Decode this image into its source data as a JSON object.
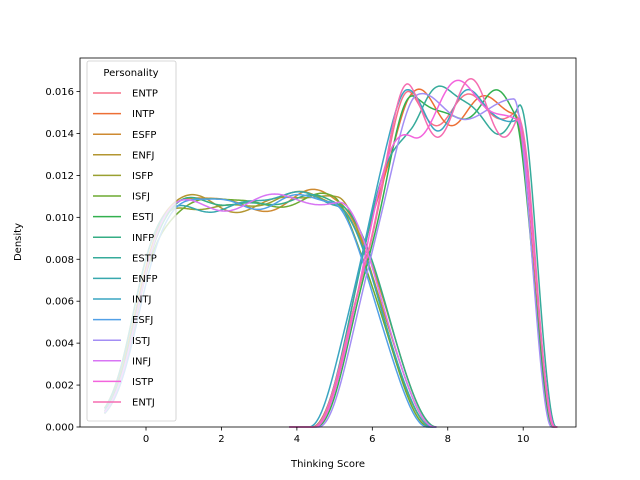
{
  "chart_data": {
    "type": "line",
    "subtype": "kde",
    "xlabel": "Thinking Score",
    "ylabel": "Density",
    "xlim": [
      -1.75,
      11.4
    ],
    "ylim": [
      0,
      0.0176
    ],
    "x_ticks": [
      0,
      2,
      4,
      6,
      8,
      10
    ],
    "y_ticks": [
      0.0,
      0.002,
      0.004,
      0.006,
      0.008,
      0.01,
      0.012,
      0.014,
      0.016
    ],
    "y_tick_labels": [
      "0.000",
      "0.002",
      "0.004",
      "0.006",
      "0.008",
      "0.010",
      "0.012",
      "0.014",
      "0.016"
    ],
    "grid": false,
    "legend": {
      "title": "Personality",
      "placement": "upper-left"
    },
    "series": [
      {
        "name": "ENTP",
        "color": "#f77189",
        "group": "high"
      },
      {
        "name": "INTP",
        "color": "#ed6f35",
        "group": "high"
      },
      {
        "name": "ESFP",
        "color": "#ce8a31",
        "group": "low"
      },
      {
        "name": "ENFJ",
        "color": "#b39631",
        "group": "low"
      },
      {
        "name": "ISFP",
        "color": "#9aa031",
        "group": "low"
      },
      {
        "name": "ISFJ",
        "color": "#6daa31",
        "group": "low"
      },
      {
        "name": "ESTJ",
        "color": "#33b04f",
        "group": "high"
      },
      {
        "name": "INFP",
        "color": "#35ad84",
        "group": "low"
      },
      {
        "name": "ESTP",
        "color": "#36ab9b",
        "group": "high"
      },
      {
        "name": "ENFP",
        "color": "#38a8ae",
        "group": "low"
      },
      {
        "name": "INTJ",
        "color": "#3aa5c2",
        "group": "high"
      },
      {
        "name": "ESFJ",
        "color": "#52a0e7",
        "group": "low"
      },
      {
        "name": "ISTJ",
        "color": "#a38ef4",
        "group": "high"
      },
      {
        "name": "INFJ",
        "color": "#d875f4",
        "group": "low"
      },
      {
        "name": "ISTP",
        "color": "#f364dd",
        "group": "high"
      },
      {
        "name": "ENTJ",
        "color": "#f56db1",
        "group": "high"
      }
    ]
  }
}
